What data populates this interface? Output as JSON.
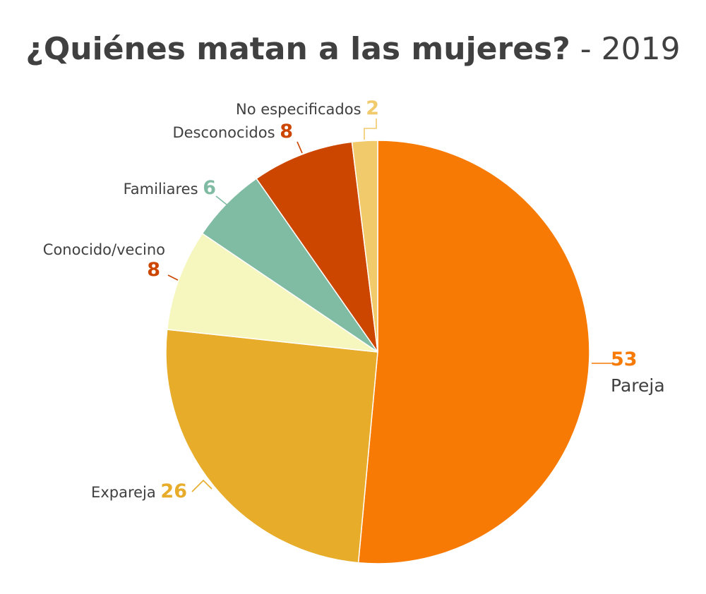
{
  "chart_data": {
    "type": "pie",
    "title": "¿Quiénes matan a las mujeres?",
    "subtitle": " - 2019",
    "slices": [
      {
        "label": "Pareja",
        "value": 53,
        "color": "#F77A04",
        "value_color": "#F77A04"
      },
      {
        "label": "Expareja",
        "value": 26,
        "color": "#E6AC2A",
        "value_color": "#E6AC2A"
      },
      {
        "label": "Conocido/vecino",
        "value": 8,
        "color": "#F6F7BF",
        "value_color": "#CC4600"
      },
      {
        "label": "Familiares",
        "value": 6,
        "color": "#80BBA3",
        "value_color": "#80BBA3"
      },
      {
        "label": "Desconocidos",
        "value": 8,
        "color": "#CC4600",
        "value_color": "#CC4600"
      },
      {
        "label": "No especificados",
        "value": 2,
        "color": "#F0CA6B",
        "value_color": "#F0CA6B"
      }
    ],
    "legend": "none"
  }
}
